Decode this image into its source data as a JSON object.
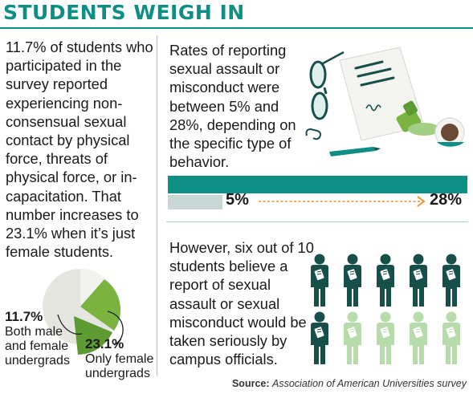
{
  "title": "STUDENTS WEIGH IN",
  "left": {
    "text": "11.7% of students who participated in the survey reported experiencing non-consensual sexual contact by physical force, threats of physical force, or in-capacitation. That number increases to 23.1% when it’s just female students."
  },
  "pie": {
    "both_value": "11.7%",
    "both_label_1": "Both male",
    "both_label_2": "and female",
    "both_label_3": "undergrads",
    "female_value": "23.1%",
    "female_label_1": "Only female",
    "female_label_2": "undergrads",
    "colors": {
      "base": "#e6e6e0",
      "light": "#7ab340",
      "dark": "#4e8a2a"
    }
  },
  "middle": {
    "text": "Rates of reporting sexual assault or misconduct were between 5% and 28%, depending on the specific type of behavior.",
    "low": "5%",
    "high": "28%",
    "low_value": 0.05,
    "high_value": 0.28
  },
  "bottom": {
    "text": "However, six out of 10 students believe a report of sexual assault or sexual misconduct would be taken seriously by campus officials.",
    "believe_count": 6,
    "total_count": 10
  },
  "source": {
    "label": "Source:",
    "text": "Association of American Universities survey"
  },
  "colors": {
    "teal": "#0e8f86",
    "dark_teal": "#174f4b",
    "light_green": "#b7dbaa",
    "orange": "#f28c28"
  }
}
